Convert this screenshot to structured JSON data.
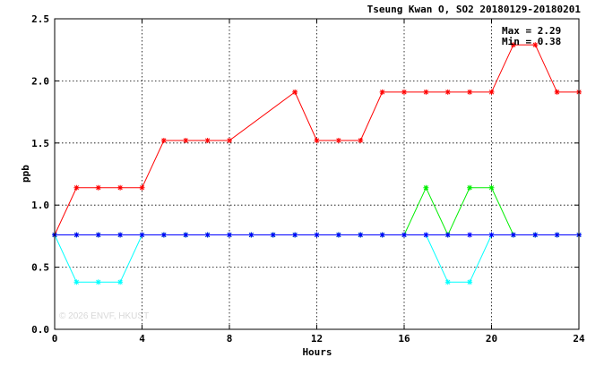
{
  "chart_data": {
    "type": "line",
    "title": "Tseung Kwan O, SO2 20180129-20180201",
    "xlabel": "Hours",
    "ylabel": "ppb",
    "xlim": [
      0,
      24
    ],
    "ylim": [
      0,
      2.5
    ],
    "xticks": [
      0,
      4,
      8,
      12,
      16,
      20,
      24
    ],
    "yticks": [
      0.0,
      0.5,
      1.0,
      1.5,
      2.0,
      2.5
    ],
    "x_tick_labels": [
      "0",
      "4",
      "8",
      "12",
      "16",
      "20",
      "24"
    ],
    "y_tick_labels": [
      "0.0",
      "0.5",
      "1.0",
      "1.5",
      "2.0",
      "2.5"
    ],
    "grid": true,
    "annotations": {
      "max": "Max = 2.29",
      "min": "Min = 0.38",
      "watermark": "© 2026 ENVF, HKUST"
    },
    "series": [
      {
        "color": "#ff0000",
        "marker": "asterisk",
        "points": [
          [
            0,
            0.76
          ],
          [
            1,
            1.14
          ],
          [
            2,
            1.14
          ],
          [
            3,
            1.14
          ],
          [
            4,
            1.14
          ],
          [
            5,
            1.52
          ],
          [
            6,
            1.52
          ],
          [
            7,
            1.52
          ],
          [
            8,
            1.52
          ],
          [
            11,
            1.91
          ],
          [
            12,
            1.52
          ],
          [
            13,
            1.52
          ],
          [
            14,
            1.52
          ],
          [
            15,
            1.91
          ],
          [
            16,
            1.91
          ],
          [
            17,
            1.91
          ],
          [
            18,
            1.91
          ],
          [
            19,
            1.91
          ],
          [
            20,
            1.91
          ],
          [
            21,
            2.29
          ],
          [
            22,
            2.29
          ],
          [
            23,
            1.91
          ],
          [
            24,
            1.91
          ]
        ]
      },
      {
        "color": "#00ffff",
        "marker": "asterisk",
        "points": [
          [
            0,
            0.76
          ],
          [
            1,
            0.38
          ],
          [
            2,
            0.38
          ],
          [
            3,
            0.38
          ],
          [
            4,
            0.76
          ],
          [
            5,
            0.76
          ],
          [
            6,
            0.76
          ],
          [
            7,
            0.76
          ],
          [
            8,
            0.76
          ],
          [
            9,
            0.76
          ],
          [
            10,
            0.76
          ],
          [
            11,
            0.76
          ],
          [
            12,
            0.76
          ],
          [
            13,
            0.76
          ],
          [
            14,
            0.76
          ],
          [
            15,
            0.76
          ],
          [
            16,
            0.76
          ],
          [
            17,
            0.76
          ],
          [
            18,
            0.38
          ],
          [
            19,
            0.38
          ],
          [
            20,
            0.76
          ],
          [
            21,
            0.76
          ],
          [
            22,
            0.76
          ],
          [
            23,
            0.76
          ],
          [
            24,
            0.76
          ]
        ]
      },
      {
        "color": "#00ee00",
        "marker": "asterisk",
        "points": [
          [
            0,
            0.76
          ],
          [
            1,
            0.76
          ],
          [
            2,
            0.76
          ],
          [
            3,
            0.76
          ],
          [
            4,
            0.76
          ],
          [
            5,
            0.76
          ],
          [
            6,
            0.76
          ],
          [
            7,
            0.76
          ],
          [
            8,
            0.76
          ],
          [
            9,
            0.76
          ],
          [
            10,
            0.76
          ],
          [
            11,
            0.76
          ],
          [
            12,
            0.76
          ],
          [
            13,
            0.76
          ],
          [
            14,
            0.76
          ],
          [
            15,
            0.76
          ],
          [
            16,
            0.76
          ],
          [
            17,
            1.14
          ],
          [
            18,
            0.76
          ],
          [
            19,
            1.14
          ],
          [
            20,
            1.14
          ],
          [
            21,
            0.76
          ],
          [
            22,
            0.76
          ],
          [
            23,
            0.76
          ],
          [
            24,
            0.76
          ]
        ]
      },
      {
        "color": "#0000ff",
        "marker": "asterisk",
        "points": [
          [
            0,
            0.76
          ],
          [
            1,
            0.76
          ],
          [
            2,
            0.76
          ],
          [
            3,
            0.76
          ],
          [
            4,
            0.76
          ],
          [
            5,
            0.76
          ],
          [
            6,
            0.76
          ],
          [
            7,
            0.76
          ],
          [
            8,
            0.76
          ],
          [
            9,
            0.76
          ],
          [
            10,
            0.76
          ],
          [
            11,
            0.76
          ],
          [
            12,
            0.76
          ],
          [
            13,
            0.76
          ],
          [
            14,
            0.76
          ],
          [
            15,
            0.76
          ],
          [
            16,
            0.76
          ],
          [
            17,
            0.76
          ],
          [
            18,
            0.76
          ],
          [
            19,
            0.76
          ],
          [
            20,
            0.76
          ],
          [
            21,
            0.76
          ],
          [
            22,
            0.76
          ],
          [
            23,
            0.76
          ],
          [
            24,
            0.76
          ]
        ]
      }
    ]
  }
}
